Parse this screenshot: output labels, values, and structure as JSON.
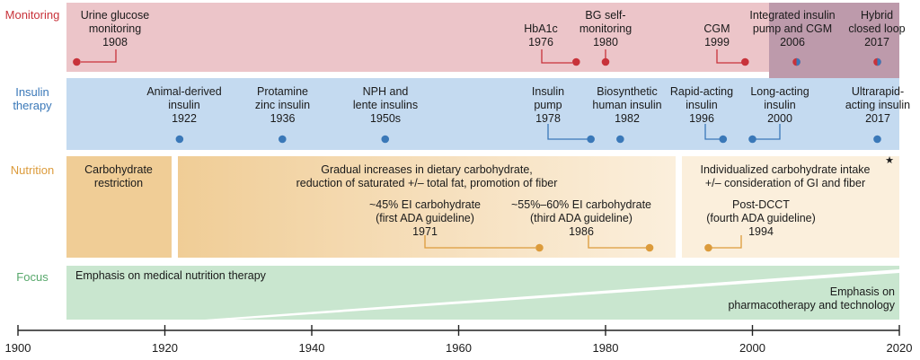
{
  "rows": {
    "monitoring": "Monitoring",
    "insulin": "Insulin therapy",
    "nutrition": "Nutrition",
    "focus": "Focus"
  },
  "colors": {
    "monitoring": "#c8323a",
    "monitoring_band": "#ecc5c9",
    "overlap_band": "#bd9aab",
    "insulin": "#3a78b8",
    "insulin_band": "#c4daf0",
    "nutrition": "#dc9b3b",
    "nutrition_band": "#f2d2a3",
    "focus": "#57a86b",
    "focus_band": "#c9e6cf",
    "axis": "#222222"
  },
  "monitoring_events": [
    {
      "id": "urine",
      "label": "Urine glucose\nmonitoring\n1908",
      "year": 1908
    },
    {
      "id": "hba1c",
      "label": "HbA1c\n1976",
      "year": 1976
    },
    {
      "id": "bg",
      "label": "BG self-\nmonitoring\n1980",
      "year": 1980
    },
    {
      "id": "cgm",
      "label": "CGM\n1999",
      "year": 1999
    },
    {
      "id": "pumpcgm",
      "label": "Integrated insulin\npump and CGM\n2006",
      "year": 2006
    },
    {
      "id": "hybrid",
      "label": "Hybrid\nclosed loop\n2017",
      "year": 2017
    }
  ],
  "insulin_events": [
    {
      "id": "animal",
      "label": "Animal-derived\ninsulin\n1922",
      "year": 1922
    },
    {
      "id": "protamine",
      "label": "Protamine\nzinc insulin\n1936",
      "year": 1936
    },
    {
      "id": "nph",
      "label": "NPH and\nlente insulins\n1950s",
      "year": 1950
    },
    {
      "id": "pump",
      "label": "Insulin\npump\n1978",
      "year": 1978
    },
    {
      "id": "biosynth",
      "label": "Biosynthetic\nhuman insulin\n1982",
      "year": 1982
    },
    {
      "id": "rapid",
      "label": "Rapid-acting\ninsulin\n1996",
      "year": 1996
    },
    {
      "id": "long",
      "label": "Long-acting\ninsulin\n2000",
      "year": 2000
    },
    {
      "id": "ultra",
      "label": "Ultrarapid-\nacting insulin\n2017",
      "year": 2017
    }
  ],
  "nutrition": {
    "carb_restriction": "Carbohydrate\nrestriction",
    "gradual": "Gradual increases in dietary carbohydrate,\nreduction of saturated +/– total fat, promotion of fiber",
    "individualized": "Individualized carbohydrate intake\n+/– consideration of GI and fiber",
    "star": "★",
    "events": [
      {
        "id": "ada1",
        "label": "~45% EI carbohydrate\n(first ADA guideline)\n1971",
        "year": 1971
      },
      {
        "id": "ada3",
        "label": "~55%–60% EI carbohydrate\n(third ADA guideline)\n1986",
        "year": 1986
      },
      {
        "id": "dcct",
        "label": "Post-DCCT\n(fourth ADA guideline)\n1994",
        "year": 1994
      }
    ]
  },
  "focus": {
    "mnt": "Emphasis on medical nutrition therapy",
    "pharma": "Emphasis on\npharmacotherapy and technology"
  },
  "axis": {
    "ticks": [
      {
        "label": "1900",
        "year": 1900
      },
      {
        "label": "1920",
        "year": 1920
      },
      {
        "label": "1940",
        "year": 1940
      },
      {
        "label": "1960",
        "year": 1960
      },
      {
        "label": "1980",
        "year": 1980
      },
      {
        "label": "2000",
        "year": 2000
      },
      {
        "label": "2020",
        "year": 2020
      }
    ]
  }
}
